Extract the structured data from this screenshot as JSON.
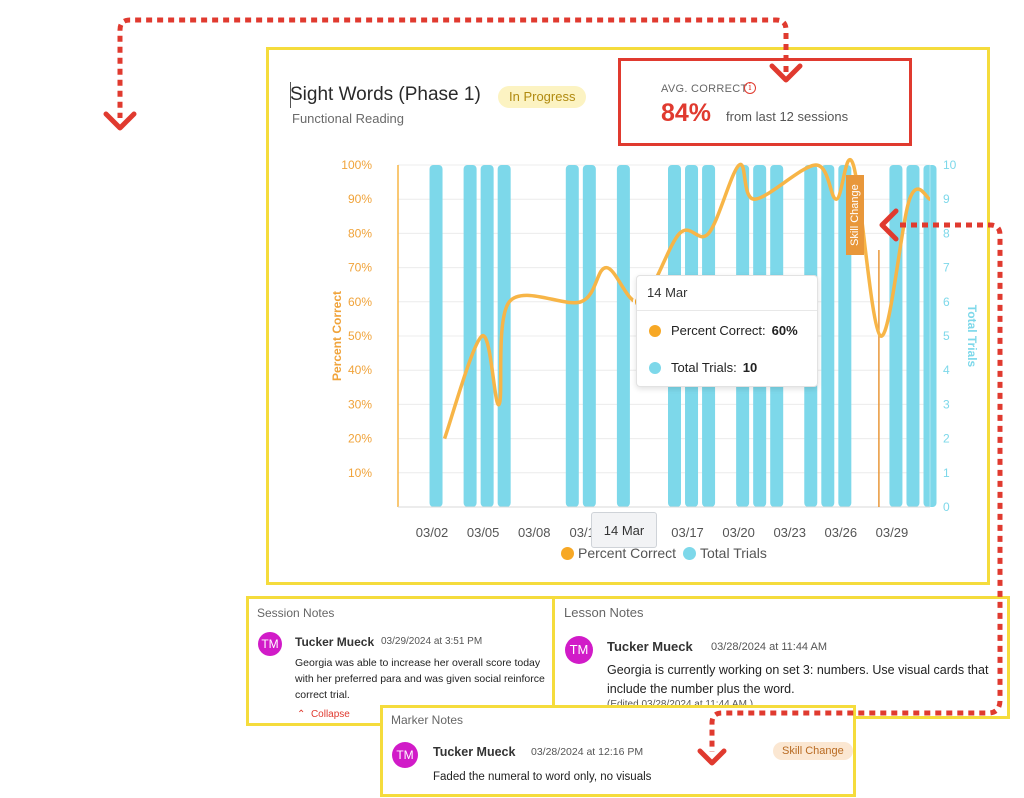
{
  "header": {
    "title": "Sight Words (Phase 1)",
    "status_badge": "In Progress",
    "subtitle": "Functional Reading"
  },
  "avg": {
    "label": "AVG. CORRECT",
    "value": "84%",
    "sub": "from last 12 sessions",
    "info_icon": "info-circle-icon"
  },
  "colors": {
    "percent": "#f7b547",
    "trials": "#7dd8ea",
    "accent_red": "#e03a2f",
    "panel_border": "#f5dc3c",
    "skill_change": "#e8973a"
  },
  "chart_data": {
    "type": "bar+line",
    "ylabel_left": "Percent Correct",
    "ylabel_right": "Total Trials",
    "y_left_ticks": [
      "10%",
      "20%",
      "30%",
      "40%",
      "50%",
      "60%",
      "70%",
      "80%",
      "90%",
      "100%"
    ],
    "y_left_range": [
      0,
      100
    ],
    "y_right_ticks": [
      "0",
      "1",
      "2",
      "3",
      "4",
      "5",
      "6",
      "7",
      "8",
      "9",
      "10"
    ],
    "y_right_range": [
      0,
      10
    ],
    "x_ticks": [
      "03/02",
      "03/05",
      "03/08",
      "03/11",
      "03/14",
      "03/17",
      "03/20",
      "03/23",
      "03/26",
      "03/29"
    ],
    "x_range_days": [
      1,
      31
    ],
    "legend": [
      {
        "label": "Percent Correct",
        "color": "#f7b547"
      },
      {
        "label": "Total Trials",
        "color": "#7dd8ea"
      }
    ],
    "trials": [
      {
        "day": 2,
        "value": 10
      },
      {
        "day": 4,
        "value": 10
      },
      {
        "day": 5,
        "value": 10
      },
      {
        "day": 6,
        "value": 10
      },
      {
        "day": 10,
        "value": 10
      },
      {
        "day": 11,
        "value": 10
      },
      {
        "day": 13,
        "value": 10
      },
      {
        "day": 16,
        "value": 10
      },
      {
        "day": 17,
        "value": 10
      },
      {
        "day": 18,
        "value": 10
      },
      {
        "day": 20,
        "value": 10
      },
      {
        "day": 21,
        "value": 10
      },
      {
        "day": 22,
        "value": 10
      },
      {
        "day": 24,
        "value": 10
      },
      {
        "day": 25,
        "value": 10
      },
      {
        "day": 26,
        "value": 10
      },
      {
        "day": 29,
        "value": 10
      },
      {
        "day": 30,
        "value": 10
      },
      {
        "day": 31,
        "value": 10
      }
    ],
    "percent": [
      {
        "day": 2.5,
        "value": 20
      },
      {
        "day": 4.7,
        "value": 50
      },
      {
        "day": 5.7,
        "value": 30
      },
      {
        "day": 6.3,
        "value": 60
      },
      {
        "day": 10.5,
        "value": 60
      },
      {
        "day": 12,
        "value": 70
      },
      {
        "day": 14,
        "value": 60
      },
      {
        "day": 16.3,
        "value": 80
      },
      {
        "day": 18,
        "value": 80
      },
      {
        "day": 19.8,
        "value": 100
      },
      {
        "day": 20.7,
        "value": 90
      },
      {
        "day": 24.3,
        "value": 100
      },
      {
        "day": 25.5,
        "value": 90
      },
      {
        "day": 26.5,
        "value": 100
      },
      {
        "day": 28.1,
        "value": 50
      },
      {
        "day": 29.8,
        "value": 90
      },
      {
        "day": 31,
        "value": 90
      }
    ],
    "skill_change": {
      "day": 28,
      "label": "Skill Change"
    },
    "tooltip": {
      "date": "14 Mar",
      "percent_label": "Percent Correct:",
      "percent_value": "60%",
      "trials_label": "Total Trials:",
      "trials_value": "10"
    },
    "hover_x_label": "14 Mar"
  },
  "session_notes": {
    "title": "Session Notes",
    "avatar": "TM",
    "author": "Tucker Mueck",
    "stamp": "03/29/2024 at 3:51 PM",
    "lines": [
      "Georgia was able to increase her overall score today",
      "with her preferred para and was given social reinforce",
      "correct trial."
    ],
    "collapse_label": "Collapse"
  },
  "lesson_notes": {
    "title": "Lesson Notes",
    "avatar": "TM",
    "author": "Tucker Mueck",
    "stamp": "03/28/2024 at 11:44 AM",
    "lines": [
      "Georgia is currently working on set 3: numbers. Use visual cards that",
      "include the number plus the word."
    ],
    "edited": "(Edited 03/28/2024 at 11:44 AM )"
  },
  "marker_notes": {
    "title": "Marker Notes",
    "avatar": "TM",
    "author": "Tucker Mueck",
    "stamp": "03/28/2024 at 12:16 PM",
    "badge": "Skill Change",
    "text": "Faded the numeral to word only, no visuals"
  }
}
